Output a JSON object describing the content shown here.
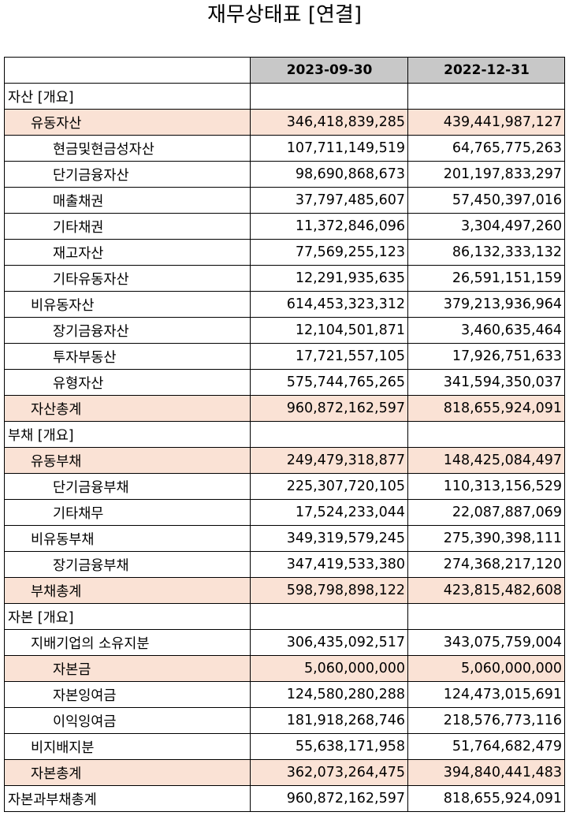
{
  "title": "재무상태표 [연결]",
  "columns": [
    "",
    "2023-09-30",
    "2022-12-31"
  ],
  "rows": [
    {
      "label": "자산 [개요]",
      "level": 0,
      "highlight": false,
      "v1": "",
      "v2": ""
    },
    {
      "label": "유동자산",
      "level": 1,
      "highlight": true,
      "v1": "346,418,839,285",
      "v2": "439,441,987,127"
    },
    {
      "label": "현금및현금성자산",
      "level": 2,
      "highlight": false,
      "v1": "107,711,149,519",
      "v2": "64,765,775,263"
    },
    {
      "label": "단기금융자산",
      "level": 2,
      "highlight": false,
      "v1": "98,690,868,673",
      "v2": "201,197,833,297"
    },
    {
      "label": "매출채권",
      "level": 2,
      "highlight": false,
      "v1": "37,797,485,607",
      "v2": "57,450,397,016"
    },
    {
      "label": "기타채권",
      "level": 2,
      "highlight": false,
      "v1": "11,372,846,096",
      "v2": "3,304,497,260"
    },
    {
      "label": "재고자산",
      "level": 2,
      "highlight": false,
      "v1": "77,569,255,123",
      "v2": "86,132,333,132"
    },
    {
      "label": "기타유동자산",
      "level": 2,
      "highlight": false,
      "v1": "12,291,935,635",
      "v2": "26,591,151,159"
    },
    {
      "label": "비유동자산",
      "level": 1,
      "highlight": false,
      "v1": "614,453,323,312",
      "v2": "379,213,936,964"
    },
    {
      "label": "장기금융자산",
      "level": 2,
      "highlight": false,
      "v1": "12,104,501,871",
      "v2": "3,460,635,464"
    },
    {
      "label": "투자부동산",
      "level": 2,
      "highlight": false,
      "v1": "17,721,557,105",
      "v2": "17,926,751,633"
    },
    {
      "label": "유형자산",
      "level": 2,
      "highlight": false,
      "v1": "575,744,765,265",
      "v2": "341,594,350,037"
    },
    {
      "label": "자산총계",
      "level": 1,
      "highlight": true,
      "v1": "960,872,162,597",
      "v2": "818,655,924,091"
    },
    {
      "label": "부채 [개요]",
      "level": 0,
      "highlight": false,
      "v1": "",
      "v2": ""
    },
    {
      "label": "유동부채",
      "level": 1,
      "highlight": true,
      "v1": "249,479,318,877",
      "v2": "148,425,084,497"
    },
    {
      "label": "단기금융부채",
      "level": 2,
      "highlight": false,
      "v1": "225,307,720,105",
      "v2": "110,313,156,529"
    },
    {
      "label": "기타채무",
      "level": 2,
      "highlight": false,
      "v1": "17,524,233,044",
      "v2": "22,087,887,069"
    },
    {
      "label": "비유동부채",
      "level": 1,
      "highlight": false,
      "v1": "349,319,579,245",
      "v2": "275,390,398,111"
    },
    {
      "label": "장기금융부채",
      "level": 2,
      "highlight": false,
      "v1": "347,419,533,380",
      "v2": "274,368,217,120"
    },
    {
      "label": "부채총계",
      "level": 1,
      "highlight": true,
      "v1": "598,798,898,122",
      "v2": "423,815,482,608"
    },
    {
      "label": "자본 [개요]",
      "level": 0,
      "highlight": false,
      "v1": "",
      "v2": ""
    },
    {
      "label": "지배기업의 소유지분",
      "level": 1,
      "highlight": false,
      "v1": "306,435,092,517",
      "v2": "343,075,759,004"
    },
    {
      "label": "자본금",
      "level": 2,
      "highlight": true,
      "v1": "5,060,000,000",
      "v2": "5,060,000,000"
    },
    {
      "label": "자본잉여금",
      "level": 2,
      "highlight": false,
      "v1": "124,580,280,288",
      "v2": "124,473,015,691"
    },
    {
      "label": "이익잉여금",
      "level": 2,
      "highlight": false,
      "v1": "181,918,268,746",
      "v2": "218,576,773,116"
    },
    {
      "label": "비지배지분",
      "level": 1,
      "highlight": false,
      "v1": "55,638,171,958",
      "v2": "51,764,682,479"
    },
    {
      "label": "자본총계",
      "level": 1,
      "highlight": true,
      "v1": "362,073,264,475",
      "v2": "394,840,441,483"
    },
    {
      "label": "자본과부채총계",
      "level": 0,
      "highlight": false,
      "v1": "960,872,162,597",
      "v2": "818,655,924,091"
    }
  ]
}
